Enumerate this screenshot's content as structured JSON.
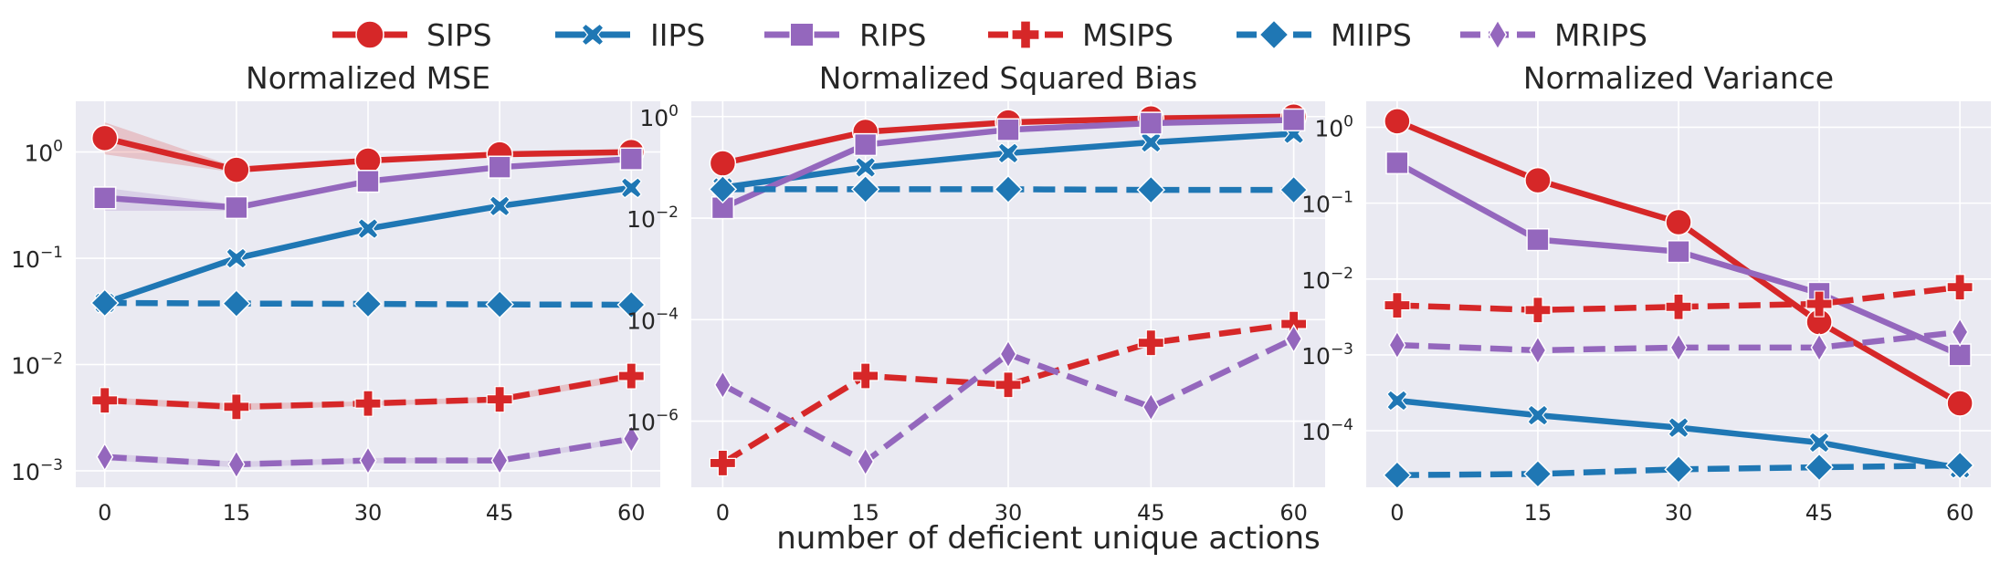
{
  "figure": {
    "xlabel": "number of deficient unique actions"
  },
  "legend": {
    "placement": "top-center",
    "entries": [
      {
        "name": "SIPS",
        "color": "#d62728",
        "marker": "circle",
        "dashed": false
      },
      {
        "name": "IIPS",
        "color": "#1f77b4",
        "marker": "x",
        "dashed": false
      },
      {
        "name": "RIPS",
        "color": "#9467bd",
        "marker": "square",
        "dashed": false
      },
      {
        "name": "MSIPS",
        "color": "#d62728",
        "marker": "plus",
        "dashed": true
      },
      {
        "name": "MIIPS",
        "color": "#1f77b4",
        "marker": "diamond",
        "dashed": true
      },
      {
        "name": "MRIPS",
        "color": "#9467bd",
        "marker": "thin-diamond",
        "dashed": true
      }
    ]
  },
  "chart_data": [
    {
      "type": "line",
      "title": "Normalized MSE",
      "xlabel": "",
      "ylabel": "",
      "x": [
        0,
        15,
        30,
        45,
        60
      ],
      "yscale": "log",
      "ylim": [
        0.0007,
        3.0
      ],
      "yticks": [
        {
          "value": 0.001,
          "base": "10",
          "exp": "−3"
        },
        {
          "value": 0.01,
          "base": "10",
          "exp": "−2"
        },
        {
          "value": 0.1,
          "base": "10",
          "exp": "−1"
        },
        {
          "value": 1,
          "base": "10",
          "exp": "0"
        }
      ],
      "grid": true,
      "series": [
        {
          "name": "SIPS",
          "values": [
            1.35,
            0.68,
            0.83,
            0.95,
            1.0
          ],
          "band_low": [
            0.95,
            0.64,
            0.8,
            0.92,
            0.97
          ],
          "band_high": [
            1.9,
            0.72,
            0.86,
            0.98,
            1.03
          ]
        },
        {
          "name": "IIPS",
          "values": [
            0.038,
            0.1,
            0.19,
            0.31,
            0.46
          ]
        },
        {
          "name": "RIPS",
          "values": [
            0.37,
            0.3,
            0.53,
            0.72,
            0.86
          ],
          "band_low": [
            0.28,
            0.28,
            0.51,
            0.7,
            0.84
          ],
          "band_high": [
            0.46,
            0.32,
            0.55,
            0.74,
            0.88
          ]
        },
        {
          "name": "MSIPS",
          "values": [
            0.0046,
            0.004,
            0.0043,
            0.0047,
            0.0078
          ],
          "band_low": [
            0.0043,
            0.0037,
            0.0041,
            0.0044,
            0.0072
          ],
          "band_high": [
            0.0049,
            0.0043,
            0.0045,
            0.005,
            0.0084
          ]
        },
        {
          "name": "MIIPS",
          "values": [
            0.038,
            0.0375,
            0.0372,
            0.0368,
            0.0365
          ]
        },
        {
          "name": "MRIPS",
          "values": [
            0.00135,
            0.00115,
            0.00125,
            0.00125,
            0.002
          ],
          "band_low": [
            0.00125,
            0.00108,
            0.00118,
            0.00118,
            0.00188
          ],
          "band_high": [
            0.00145,
            0.00122,
            0.00132,
            0.00132,
            0.00212
          ]
        }
      ]
    },
    {
      "type": "line",
      "title": "Normalized Squared Bias",
      "xlabel": "",
      "ylabel": "",
      "x": [
        0,
        15,
        30,
        45,
        60
      ],
      "yscale": "log",
      "ylim": [
        5e-08,
        2.0
      ],
      "yticks": [
        {
          "value": 1e-06,
          "base": "10",
          "exp": "−6"
        },
        {
          "value": 0.0001,
          "base": "10",
          "exp": "−4"
        },
        {
          "value": 0.01,
          "base": "10",
          "exp": "−2"
        },
        {
          "value": 1,
          "base": "10",
          "exp": "0"
        }
      ],
      "grid": true,
      "series": [
        {
          "name": "SIPS",
          "values": [
            0.12,
            0.5,
            0.77,
            0.92,
            1.0
          ]
        },
        {
          "name": "IIPS",
          "values": [
            0.04,
            0.1,
            0.19,
            0.31,
            0.46
          ]
        },
        {
          "name": "RIPS",
          "values": [
            0.016,
            0.28,
            0.55,
            0.74,
            0.86
          ]
        },
        {
          "name": "MSIPS",
          "values": [
            1.5e-07,
            7.8e-06,
            5.2e-06,
            3.5e-05,
            8.2e-05
          ]
        },
        {
          "name": "MIIPS",
          "values": [
            0.037,
            0.037,
            0.037,
            0.036,
            0.036
          ]
        },
        {
          "name": "MRIPS",
          "values": [
            5.2e-06,
            1.6e-07,
            2.1e-05,
            1.9e-06,
            4.2e-05
          ]
        }
      ]
    },
    {
      "type": "line",
      "title": "Normalized Variance",
      "xlabel": "",
      "ylabel": "",
      "x": [
        0,
        15,
        30,
        45,
        60
      ],
      "yscale": "log",
      "ylim": [
        1.8e-05,
        2.2
      ],
      "yticks": [
        {
          "value": 0.0001,
          "base": "10",
          "exp": "−4"
        },
        {
          "value": 0.001,
          "base": "10",
          "exp": "−3"
        },
        {
          "value": 0.01,
          "base": "10",
          "exp": "−2"
        },
        {
          "value": 0.1,
          "base": "10",
          "exp": "−1"
        },
        {
          "value": 1,
          "base": "10",
          "exp": "0"
        }
      ],
      "grid": true,
      "series": [
        {
          "name": "SIPS",
          "values": [
            1.2,
            0.2,
            0.056,
            0.0027,
            0.00023
          ]
        },
        {
          "name": "IIPS",
          "values": [
            0.00025,
            0.00016,
            0.00011,
            7e-05,
            3.2e-05
          ]
        },
        {
          "name": "RIPS",
          "values": [
            0.34,
            0.033,
            0.023,
            0.0065,
            0.001
          ]
        },
        {
          "name": "MSIPS",
          "values": [
            0.0045,
            0.0039,
            0.0043,
            0.0047,
            0.0078
          ]
        },
        {
          "name": "MIIPS",
          "values": [
            2.6e-05,
            2.7e-05,
            3.1e-05,
            3.3e-05,
            3.5e-05
          ]
        },
        {
          "name": "MRIPS",
          "values": [
            0.00135,
            0.00115,
            0.00125,
            0.00125,
            0.002
          ]
        }
      ]
    }
  ]
}
